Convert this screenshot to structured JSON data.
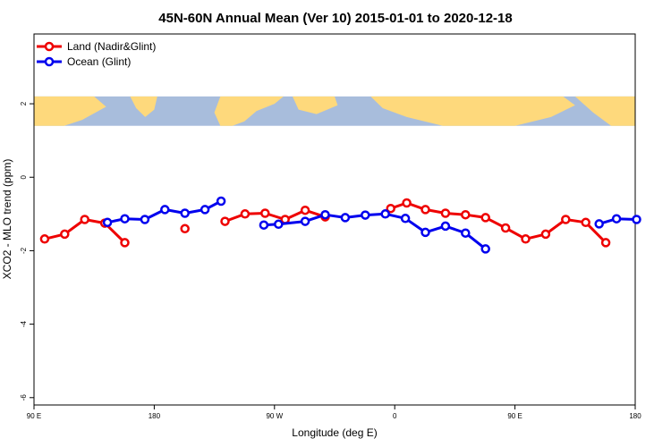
{
  "chart_data": {
    "type": "line",
    "title": "45N-60N Annual Mean (Ver 10)   2015-01-01 to 2020-12-18",
    "xlabel": "Longitude (deg E)",
    "ylabel": "XCO2 - MLO trend (ppm)",
    "xlim": [
      90,
      540
    ],
    "ylim": [
      -6.2,
      3.9
    ],
    "x_ticks": [
      {
        "value": 90,
        "label": "90 E"
      },
      {
        "value": 180,
        "label": "180"
      },
      {
        "value": 270,
        "label": "90 W"
      },
      {
        "value": 360,
        "label": "0"
      },
      {
        "value": 450,
        "label": "90 E"
      },
      {
        "value": 540,
        "label": "180"
      }
    ],
    "y_ticks": [
      {
        "value": -6,
        "label": "-6"
      },
      {
        "value": -4,
        "label": "-4"
      },
      {
        "value": -2,
        "label": "-2"
      },
      {
        "value": 0,
        "label": "0"
      },
      {
        "value": 2,
        "label": "2"
      }
    ],
    "map_strip": {
      "y_from": 1.4,
      "y_to": 2.2,
      "land_color": "#fed97c",
      "ocean_color": "#a8bddc"
    },
    "legend_position": "top-left",
    "series": [
      {
        "name": "Land (Nadir&Glint)",
        "color": "#ee0000",
        "segments": [
          [
            [
              98,
              -1.68
            ],
            [
              113,
              -1.55
            ],
            [
              128,
              -1.15
            ],
            [
              143,
              -1.25
            ],
            [
              158,
              -1.78
            ]
          ],
          [
            [
              203,
              -1.4
            ]
          ],
          [
            [
              233,
              -1.2
            ],
            [
              248,
              -1.0
            ],
            [
              263,
              -0.98
            ],
            [
              278,
              -1.15
            ],
            [
              293,
              -0.9
            ],
            [
              308,
              -1.08
            ]
          ],
          [
            [
              357,
              -0.85
            ],
            [
              369,
              -0.7
            ],
            [
              383,
              -0.88
            ],
            [
              398,
              -0.98
            ],
            [
              413,
              -1.02
            ],
            [
              428,
              -1.1
            ],
            [
              443,
              -1.38
            ],
            [
              458,
              -1.68
            ],
            [
              473,
              -1.55
            ],
            [
              488,
              -1.15
            ],
            [
              503,
              -1.23
            ],
            [
              518,
              -1.78
            ]
          ]
        ]
      },
      {
        "name": "Ocean (Glint)",
        "color": "#0000ee",
        "segments": [
          [
            [
              145,
              -1.23
            ],
            [
              158,
              -1.13
            ],
            [
              173,
              -1.15
            ],
            [
              188,
              -0.88
            ],
            [
              203,
              -0.98
            ],
            [
              218,
              -0.88
            ],
            [
              230,
              -0.65
            ]
          ],
          [
            [
              262,
              -1.3
            ],
            [
              273,
              -1.28
            ],
            [
              293,
              -1.2
            ],
            [
              308,
              -1.02
            ],
            [
              323,
              -1.1
            ],
            [
              338,
              -1.03
            ],
            [
              353,
              -1.0
            ],
            [
              368,
              -1.12
            ],
            [
              383,
              -1.5
            ],
            [
              398,
              -1.33
            ],
            [
              413,
              -1.52
            ],
            [
              428,
              -1.95
            ]
          ],
          [
            [
              513,
              -1.27
            ],
            [
              526,
              -1.13
            ],
            [
              541,
              -1.15
            ]
          ]
        ]
      }
    ]
  }
}
